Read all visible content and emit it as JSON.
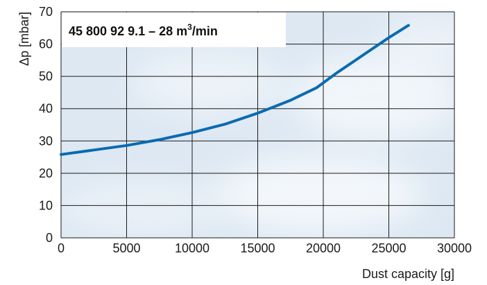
{
  "chart_data": {
    "type": "line",
    "title": "45 800 92 9.1 – 28 m³/min",
    "title_parts": {
      "main": "45 800 92 9.1 – 28 m",
      "sup": "3",
      "tail": "/min"
    },
    "xlabel": "Dust capacity [g]",
    "ylabel": "Δp [mbar]",
    "xlim": [
      0,
      30000
    ],
    "ylim": [
      0,
      70
    ],
    "xticks": [
      0,
      5000,
      10000,
      15000,
      20000,
      25000,
      30000
    ],
    "yticks": [
      0,
      10,
      20,
      30,
      40,
      50,
      60,
      70
    ],
    "grid": true,
    "series": [
      {
        "x": [
          0,
          2500,
          5000,
          7500,
          10000,
          12500,
          15000,
          17500,
          19500,
          21000,
          23000,
          25000,
          26500
        ],
        "y": [
          25.8,
          27.2,
          28.6,
          30.4,
          32.6,
          35.2,
          38.6,
          42.6,
          46.5,
          51.0,
          56.5,
          62.0,
          65.8
        ]
      }
    ],
    "colors": {
      "line": "#0a6bb0",
      "grid": "#1a1a1a",
      "background": "#dde8f3",
      "cloud": "#ffffff"
    }
  }
}
